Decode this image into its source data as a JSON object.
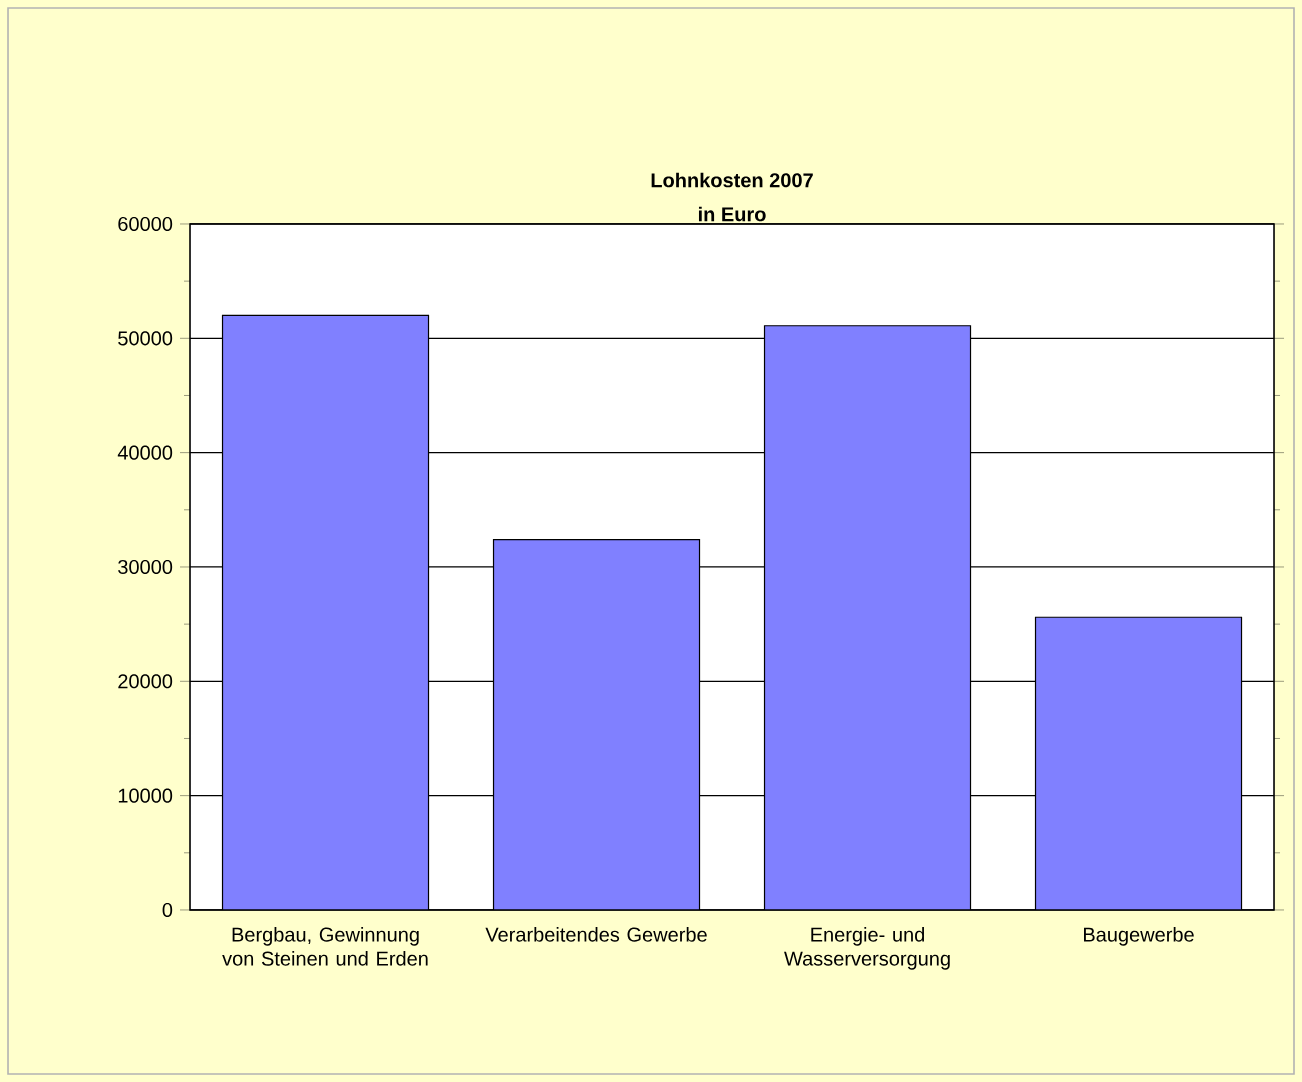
{
  "chart_data": {
    "type": "bar",
    "title": "Lohnkosten 2007",
    "subtitle": "in Euro",
    "categories": [
      "Bergbau, Gewinnung von Steinen und Erden",
      "Verarbeitendes Gewerbe",
      "Energie- und Wasserversorgung",
      "Baugewerbe"
    ],
    "values": [
      52000,
      32400,
      51100,
      25600
    ],
    "color": "#8080ff",
    "ylim": [
      0,
      60000
    ],
    "yticks": [
      0,
      10000,
      20000,
      30000,
      40000,
      50000,
      60000
    ],
    "grid": "y"
  }
}
